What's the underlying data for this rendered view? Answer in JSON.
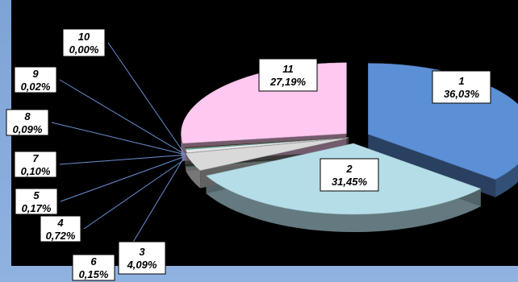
{
  "chart_data": {
    "type": "pie",
    "title": "",
    "style": "3d-exploded",
    "label_format": "category_and_percent",
    "slices": [
      {
        "label": "1",
        "value_text": "36,03%",
        "value": 36.03,
        "color": "#5b8fd6"
      },
      {
        "label": "2",
        "value_text": "31,45%",
        "value": 31.45,
        "color": "#b5dde8"
      },
      {
        "label": "3",
        "value_text": "4,09%",
        "value": 4.09,
        "color": "#d9d9d9"
      },
      {
        "label": "4",
        "value_text": "0,72%",
        "value": 0.72,
        "color": "#e6e6e6"
      },
      {
        "label": "5",
        "value_text": "0,17%",
        "value": 0.17,
        "color": "#4bacc6"
      },
      {
        "label": "6",
        "value_text": "0,15%",
        "value": 0.15,
        "color": "#9bbb59"
      },
      {
        "label": "7",
        "value_text": "0,10%",
        "value": 0.1,
        "color": "#1f3f7a"
      },
      {
        "label": "8",
        "value_text": "0,09%",
        "value": 0.09,
        "color": "#8b0000"
      },
      {
        "label": "9",
        "value_text": "0,02%",
        "value": 0.02,
        "color": "#7f7f7f"
      },
      {
        "label": "10",
        "value_text": "0,00%",
        "value": 0.0,
        "color": "#f79646"
      },
      {
        "label": "11",
        "value_text": "27,19%",
        "value": 27.19,
        "color": "#ffc8f0"
      }
    ]
  }
}
